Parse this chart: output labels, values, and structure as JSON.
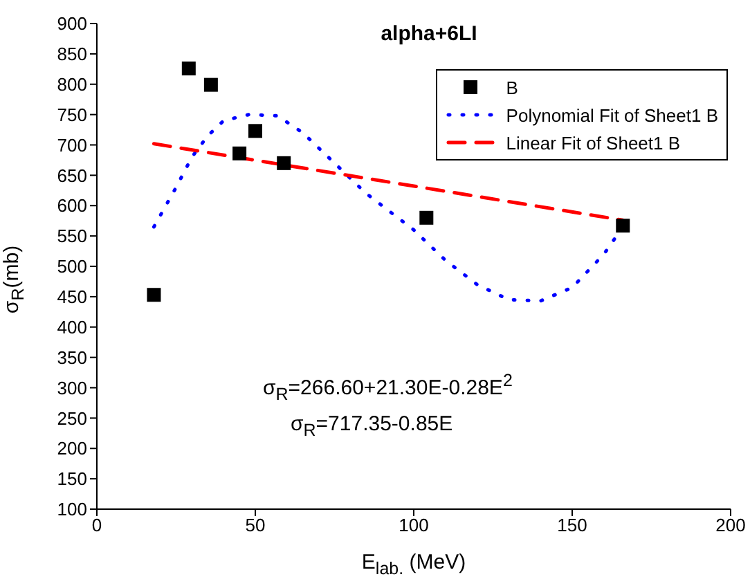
{
  "chart_data": {
    "type": "scatter",
    "title": "alpha+6LI",
    "xlabel": "E$_{lab.}$ (MeV)",
    "ylabel": "σ$_{R}$(mb)",
    "xlim": [
      0,
      200
    ],
    "xticks": [
      0,
      50,
      100,
      150,
      200
    ],
    "ylim": [
      100,
      900
    ],
    "yticks": [
      100,
      150,
      200,
      250,
      300,
      350,
      400,
      450,
      500,
      550,
      600,
      650,
      700,
      750,
      800,
      850,
      900
    ],
    "legend": "top right",
    "marker": "square",
    "x": [
      18,
      29,
      36,
      45,
      50,
      59,
      104,
      166
    ],
    "series": [
      {
        "name": "B",
        "color": "#000000",
        "values": [
          453,
          826,
          799,
          686,
          723,
          670,
          580,
          567
        ]
      },
      {
        "name": "Polynomial Fit of Sheet1 B",
        "type": "line",
        "line_style": "dotted",
        "marker": "none",
        "color": "#0000ff",
        "x": [
          18,
          25,
          30,
          35,
          40,
          48,
          57,
          65,
          75,
          85,
          100,
          110,
          120,
          130,
          140,
          150,
          160,
          166
        ],
        "values": [
          565,
          630,
          680,
          715,
          740,
          750,
          748,
          720,
          670,
          620,
          560,
          510,
          470,
          445,
          443,
          465,
          520,
          565
        ]
      },
      {
        "name": "Linear Fit of Sheet1 B",
        "type": "line",
        "line_style": "dashed",
        "marker": "none",
        "color": "#ff0000",
        "x": [
          18,
          166
        ],
        "values": [
          702,
          576
        ]
      }
    ],
    "annotations": [
      "σ$_{R}$=266.60+21.30E-0.28E$^{2}$",
      "σ$_{R}$=717.35-0.85E"
    ]
  }
}
